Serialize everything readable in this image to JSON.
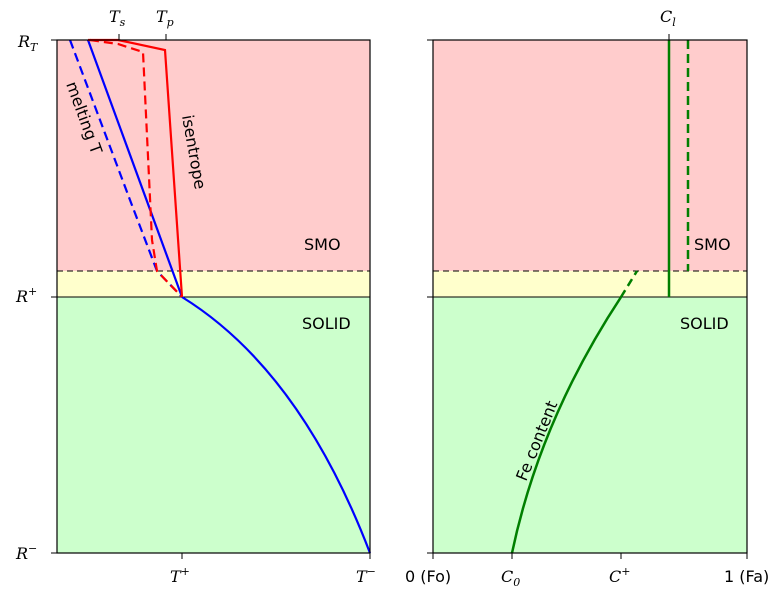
{
  "colors": {
    "smo_region": "#ffcccc",
    "interface_region": "#ffffcc",
    "solid_region": "#ccffcc",
    "temperature": "#ff0000",
    "melting": "#0000ff",
    "fe_content": "#007f00"
  },
  "left_panel": {
    "top_ticks": {
      "ts": "T",
      "ts_sub": "s",
      "tp": "T",
      "tp_sub": "p"
    },
    "y_ticks": {
      "rt": "R",
      "rt_sub": "T",
      "rplus": "R",
      "rplus_sup": "+",
      "rminus": "R",
      "rminus_sup": "−"
    },
    "x_ticks": {
      "tplus": "T",
      "tplus_sup": "+",
      "tminus": "T",
      "tminus_sup": "−"
    },
    "zones": {
      "smo": "SMO",
      "solid": "SOLID"
    },
    "annotations": {
      "isentrope": "isentrope",
      "melting": "melting T"
    }
  },
  "right_panel": {
    "top_ticks": {
      "cl": "C",
      "cl_sub": "l"
    },
    "x_ticks": {
      "fo": "0 (Fo)",
      "c0": "C",
      "c0_sub": "0",
      "cplus": "C",
      "cplus_sup": "+",
      "fa": "1 (Fa)"
    },
    "zones": {
      "smo": "SMO",
      "solid": "SOLID"
    },
    "annotations": {
      "fe_content": "Fe content"
    }
  }
}
